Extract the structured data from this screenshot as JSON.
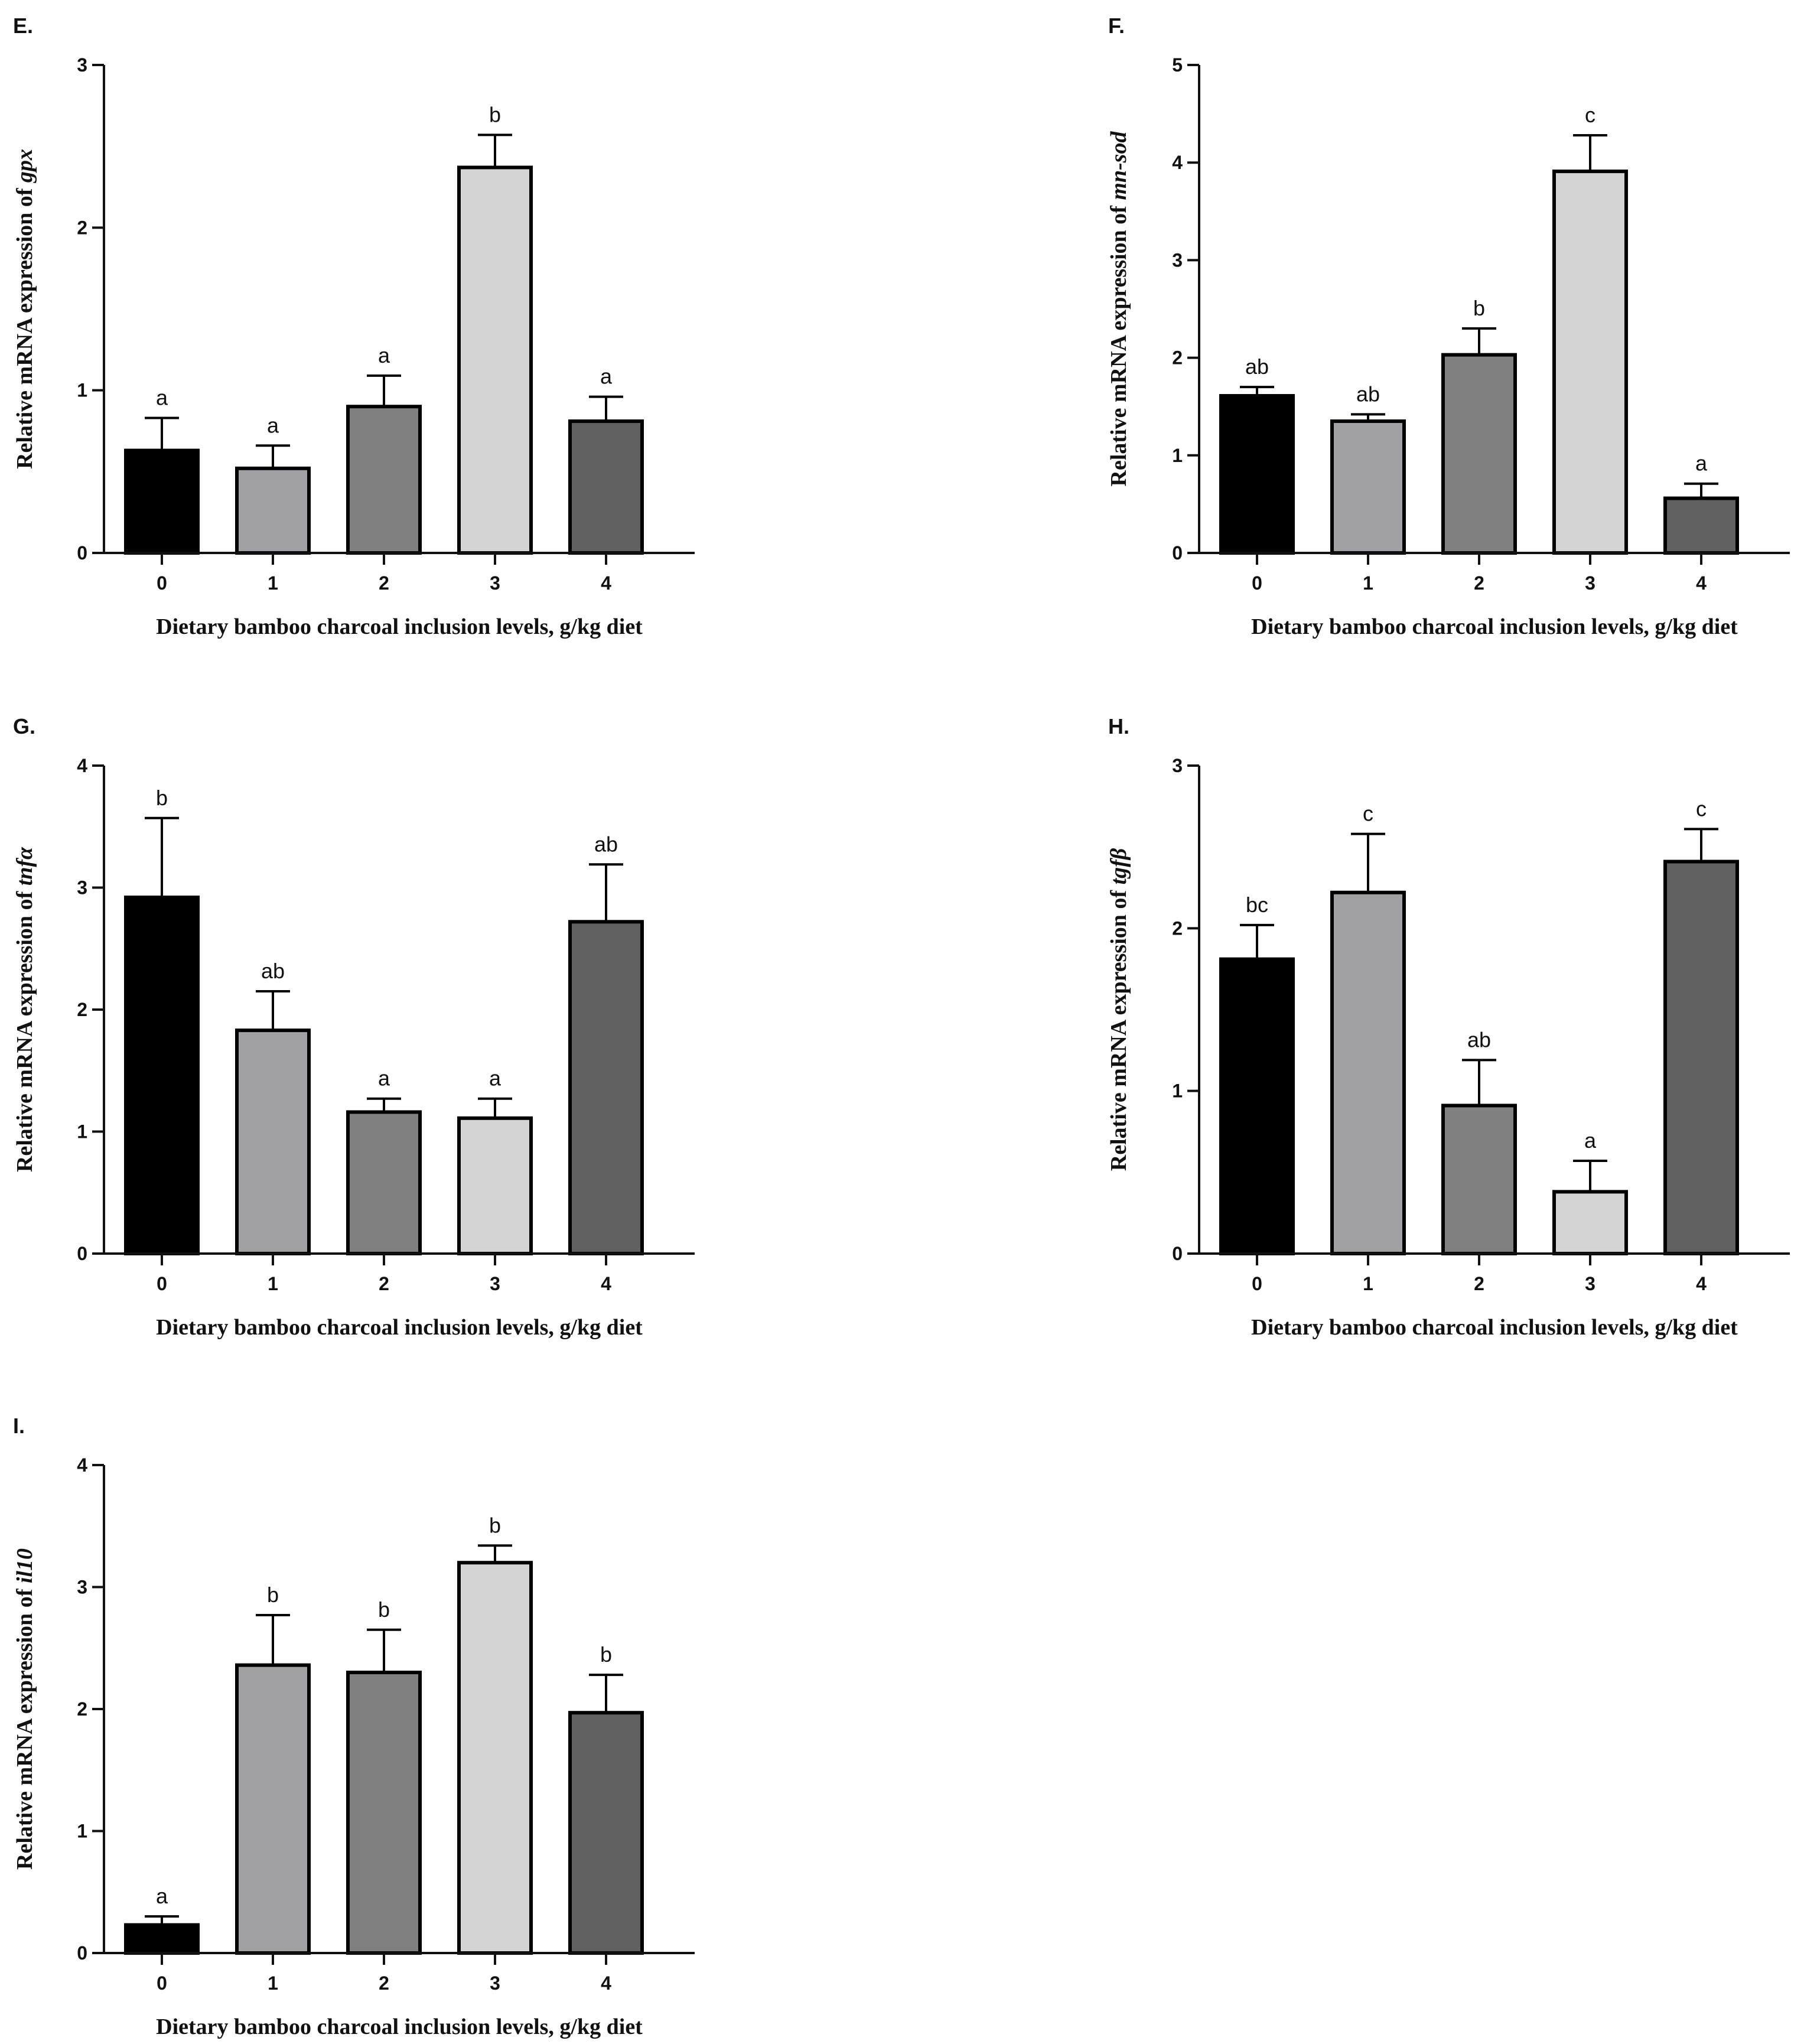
{
  "figure": {
    "bar_colors": [
      "#000000",
      "#a0a0a5",
      "#808080",
      "#d4d4d4",
      "#606060"
    ],
    "axis_color": "#111111"
  },
  "chart_data": [
    {
      "type": "bar",
      "panel": "E.",
      "categories": [
        "0",
        "1",
        "2",
        "3",
        "4"
      ],
      "values": [
        0.63,
        0.52,
        0.9,
        2.37,
        0.81
      ],
      "errors": [
        0.2,
        0.14,
        0.19,
        0.2,
        0.15
      ],
      "significance": [
        "a",
        "a",
        "a",
        "b",
        "a"
      ],
      "ylim": [
        0,
        3
      ],
      "yticks": [
        "0",
        "1",
        "2",
        "3"
      ],
      "ylabel_prefix": "Relative mRNA expression of ",
      "ylabel_gene": "gpx",
      "xlabel": "Dietary bamboo charcoal inclusion levels, g/kg diet"
    },
    {
      "type": "bar",
      "panel": "F.",
      "categories": [
        "0",
        "1",
        "2",
        "3",
        "4"
      ],
      "values": [
        1.61,
        1.35,
        2.03,
        3.91,
        0.56
      ],
      "errors": [
        0.09,
        0.07,
        0.27,
        0.37,
        0.15
      ],
      "significance": [
        "ab",
        "ab",
        "b",
        "c",
        "a"
      ],
      "ylim": [
        0,
        5
      ],
      "yticks": [
        "0",
        "1",
        "2",
        "3",
        "4",
        "5"
      ],
      "ylabel_prefix": "Relative mRNA expression of ",
      "ylabel_gene": "mn-sod",
      "xlabel": "Dietary bamboo charcoal inclusion levels, g/kg diet"
    },
    {
      "type": "bar",
      "panel": "G.",
      "categories": [
        "0",
        "1",
        "2",
        "3",
        "4"
      ],
      "values": [
        2.92,
        1.83,
        1.16,
        1.11,
        2.72
      ],
      "errors": [
        0.65,
        0.32,
        0.11,
        0.16,
        0.47
      ],
      "significance": [
        "b",
        "ab",
        "a",
        "a",
        "ab"
      ],
      "ylim": [
        0,
        4
      ],
      "yticks": [
        "0",
        "1",
        "2",
        "3",
        "4"
      ],
      "ylabel_prefix": "Relative mRNA expression of ",
      "ylabel_gene": "tnfα",
      "xlabel": "Dietary bamboo charcoal inclusion levels, g/kg diet"
    },
    {
      "type": "bar",
      "panel": "H.",
      "categories": [
        "0",
        "1",
        "2",
        "3",
        "4"
      ],
      "values": [
        1.81,
        2.22,
        0.91,
        0.38,
        2.41
      ],
      "errors": [
        0.21,
        0.36,
        0.28,
        0.19,
        0.2
      ],
      "significance": [
        "bc",
        "c",
        "ab",
        "a",
        "c"
      ],
      "ylim": [
        0,
        3
      ],
      "yticks": [
        "0",
        "1",
        "2",
        "3"
      ],
      "ylabel_prefix": "Relative mRNA expression of ",
      "ylabel_gene": "tgfβ",
      "xlabel": "Dietary bamboo charcoal inclusion levels, g/kg diet"
    },
    {
      "type": "bar",
      "panel": "I.",
      "categories": [
        "0",
        "1",
        "2",
        "3",
        "4"
      ],
      "values": [
        0.23,
        2.36,
        2.3,
        3.2,
        1.97
      ],
      "errors": [
        0.07,
        0.41,
        0.35,
        0.14,
        0.31
      ],
      "significance": [
        "a",
        "b",
        "b",
        "b",
        "b"
      ],
      "ylim": [
        0,
        4
      ],
      "yticks": [
        "0",
        "1",
        "2",
        "3",
        "4"
      ],
      "ylabel_prefix": "Relative mRNA expression of ",
      "ylabel_gene": "il10",
      "xlabel": "Dietary bamboo charcoal inclusion levels, g/kg diet"
    }
  ]
}
